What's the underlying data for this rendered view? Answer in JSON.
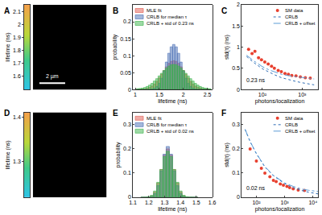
{
  "chart_data": [
    {
      "type": "image",
      "panel_label": "A",
      "colorbar": {
        "label": "lifetime (ns)",
        "range": [
          1.5,
          2.15
        ],
        "ticks": [
          1.6,
          1.7,
          1.8,
          1.9,
          2,
          2.1
        ]
      },
      "annotations": [
        "2 µm"
      ]
    },
    {
      "type": "histogram",
      "panel_label": "B",
      "xlabel": "lifetime (ns)",
      "ylabel": "probability",
      "bins": [
        1.025,
        1.075,
        1.125,
        1.175,
        1.225,
        1.275,
        1.325,
        1.375,
        1.425,
        1.475,
        1.525,
        1.575,
        1.625,
        1.675,
        1.725,
        1.775,
        1.825,
        1.875,
        1.925,
        1.975,
        2.025,
        2.075,
        2.125,
        2.175,
        2.225,
        2.275,
        2.325,
        2.375,
        2.425,
        2.475,
        2.525,
        2.575
      ],
      "series": [
        {
          "name": "MLE fit",
          "color": "#e05a4f",
          "values": [
            0,
            0.0005,
            0.001,
            0.002,
            0.004,
            0.006,
            0.01,
            0.016,
            0.024,
            0.034,
            0.045,
            0.056,
            0.067,
            0.077,
            0.083,
            0.085,
            0.083,
            0.077,
            0.067,
            0.056,
            0.045,
            0.034,
            0.024,
            0.016,
            0.01,
            0.006,
            0.004,
            0.002,
            0.001,
            0.0005,
            0
          ]
        },
        {
          "name": "CRLB for median τ",
          "color": "#4a6fb5",
          "values": [
            0,
            0,
            0,
            0,
            0,
            0.0005,
            0.0015,
            0.004,
            0.009,
            0.018,
            0.033,
            0.055,
            0.081,
            0.107,
            0.126,
            0.133,
            0.126,
            0.107,
            0.081,
            0.055,
            0.033,
            0.018,
            0.009,
            0.004,
            0.0015,
            0.0005,
            0,
            0,
            0,
            0,
            0
          ]
        },
        {
          "name": "CRLB + std of 0.23 ns",
          "color": "#3cb44b",
          "values": [
            0.002,
            0.003,
            0.004,
            0.006,
            0.009,
            0.013,
            0.018,
            0.025,
            0.032,
            0.04,
            0.048,
            0.056,
            0.063,
            0.069,
            0.073,
            0.074,
            0.073,
            0.069,
            0.063,
            0.056,
            0.048,
            0.04,
            0.032,
            0.025,
            0.018,
            0.013,
            0.009,
            0.006,
            0.004,
            0.003,
            0.002
          ]
        }
      ],
      "xlim": [
        0.95,
        2.6
      ],
      "xticks": [
        1,
        1.5,
        2,
        2.5
      ],
      "ylim": [
        0,
        0.25
      ],
      "yticks": [
        0,
        0.05,
        0.1,
        0.15,
        0.2
      ],
      "grid": false,
      "legend": "upper left"
    },
    {
      "type": "scatter",
      "panel_label": "C",
      "xlabel": "photons/localization",
      "ylabel": "std(τ) (ns)",
      "log": "x",
      "series": [
        {
          "name": "SM data",
          "type": "scatter",
          "marker": "circle",
          "color": "#e8402f",
          "x": [
            45,
            55,
            65,
            80,
            95,
            115,
            140,
            170,
            200,
            250,
            300,
            370,
            450,
            550,
            700,
            900,
            1200,
            1600
          ],
          "values": [
            0.95,
            0.85,
            0.9,
            0.75,
            0.7,
            0.65,
            0.6,
            0.55,
            0.5,
            0.45,
            0.42,
            0.38,
            0.36,
            0.33,
            0.32,
            0.3,
            0.28,
            0.27
          ]
        },
        {
          "name": "CRLB",
          "type": "line",
          "line_style": "dotted",
          "color": "#2f6db5",
          "x": [
            40,
            60,
            100,
            150,
            200,
            300,
            500,
            700,
            1000,
            1500,
            2000
          ],
          "values": [
            0.78,
            0.64,
            0.49,
            0.4,
            0.35,
            0.28,
            0.22,
            0.19,
            0.16,
            0.13,
            0.11
          ]
        },
        {
          "name": "CRLB + offset",
          "type": "line",
          "line_style": "dashdot",
          "color": "#5b9bd5",
          "x": [
            40,
            60,
            100,
            150,
            200,
            300,
            500,
            700,
            1000,
            1500,
            2000
          ],
          "values": [
            0.81,
            0.68,
            0.54,
            0.46,
            0.42,
            0.36,
            0.32,
            0.3,
            0.28,
            0.26,
            0.25
          ]
        }
      ],
      "xlim": [
        30,
        2500
      ],
      "xticks": [
        {
          "value": 100,
          "label": "10²"
        },
        {
          "value": 1000,
          "label": "10³"
        }
      ],
      "ylim": [
        0,
        2
      ],
      "yticks": [
        0,
        0.5,
        1,
        1.5,
        2
      ],
      "grid": false,
      "legend": "upper right",
      "annotations": [
        "0.23 ns"
      ]
    },
    {
      "type": "image",
      "panel_label": "D",
      "colorbar": {
        "label": "lifetime (ns)",
        "range": [
          1.22,
          1.41
        ],
        "ticks": [
          1.3,
          1.4
        ]
      }
    },
    {
      "type": "histogram",
      "panel_label": "E",
      "xlabel": "lifetime (ns)",
      "ylabel": "probability",
      "bins": [
        1.15,
        1.17,
        1.19,
        1.21,
        1.23,
        1.25,
        1.27,
        1.29,
        1.31,
        1.33,
        1.35,
        1.37,
        1.39,
        1.41,
        1.43,
        1.45,
        1.47,
        1.49,
        1.51
      ],
      "series": [
        {
          "name": "MLE fit",
          "color": "#e05a4f",
          "values": [
            0,
            0,
            0.001,
            0.006,
            0.022,
            0.058,
            0.115,
            0.174,
            0.2,
            0.174,
            0.115,
            0.058,
            0.022,
            0.006,
            0.001,
            0,
            0,
            0
          ]
        },
        {
          "name": "CRLB for median τ",
          "color": "#4a6fb5",
          "values": [
            0,
            0,
            0.001,
            0.004,
            0.015,
            0.048,
            0.109,
            0.178,
            0.21,
            0.178,
            0.109,
            0.048,
            0.015,
            0.004,
            0.001,
            0,
            0,
            0
          ]
        },
        {
          "name": "CRLB + std of 0.02 ns",
          "color": "#3cb44b",
          "values": [
            0,
            0.0004,
            0.002,
            0.008,
            0.026,
            0.062,
            0.115,
            0.168,
            0.19,
            0.168,
            0.115,
            0.062,
            0.026,
            0.008,
            0.002,
            0.0004,
            0,
            0
          ]
        }
      ],
      "xlim": [
        1.1,
        1.6
      ],
      "xticks": [
        1.1,
        1.2,
        1.3,
        1.4,
        1.5,
        1.6
      ],
      "ylim": [
        0,
        0.35
      ],
      "yticks": [
        0,
        0.1,
        0.2,
        0.3
      ],
      "grid": false,
      "legend": "upper left"
    },
    {
      "type": "scatter",
      "panel_label": "F",
      "xlabel": "photons/localization",
      "ylabel": "std(τ) (ns)",
      "log": "x",
      "series": [
        {
          "name": "SM data",
          "type": "scatter",
          "marker": "circle",
          "color": "#e8402f",
          "x": [
            60,
            100,
            150,
            200,
            300,
            400,
            500,
            700,
            900,
            1200,
            1500,
            2000,
            3000,
            5000
          ],
          "values": [
            0.2,
            0.15,
            0.12,
            0.1,
            0.085,
            0.07,
            0.065,
            0.055,
            0.05,
            0.045,
            0.04,
            0.035,
            0.03,
            0.028
          ]
        },
        {
          "name": "CRLB",
          "type": "line",
          "line_style": "dotted",
          "color": "#2f6db5",
          "x": [
            40,
            60,
            100,
            200,
            400,
            700,
            1000,
            2000,
            4000,
            7000,
            10000,
            15000
          ],
          "values": [
            0.28,
            0.23,
            0.18,
            0.125,
            0.089,
            0.067,
            0.056,
            0.04,
            0.028,
            0.021,
            0.018,
            0.014
          ]
        },
        {
          "name": "CRLB + offset",
          "type": "line",
          "line_style": "dashdot",
          "color": "#5b9bd5",
          "x": [
            40,
            60,
            100,
            200,
            400,
            700,
            1000,
            2000,
            4000,
            7000,
            10000,
            15000
          ],
          "values": [
            0.281,
            0.231,
            0.181,
            0.127,
            0.091,
            0.07,
            0.059,
            0.045,
            0.034,
            0.029,
            0.027,
            0.024
          ]
        }
      ],
      "xlim": [
        30,
        15000
      ],
      "xticks": [
        {
          "value": 100,
          "label": "10²"
        },
        {
          "value": 1000,
          "label": "10³"
        },
        {
          "value": 10000,
          "label": "10⁴"
        }
      ],
      "ylim": [
        0,
        0.35
      ],
      "yticks": [
        0,
        0.1,
        0.2,
        0.3
      ],
      "grid": false,
      "legend": "upper right",
      "annotations": [
        "0.02 ns"
      ]
    }
  ]
}
